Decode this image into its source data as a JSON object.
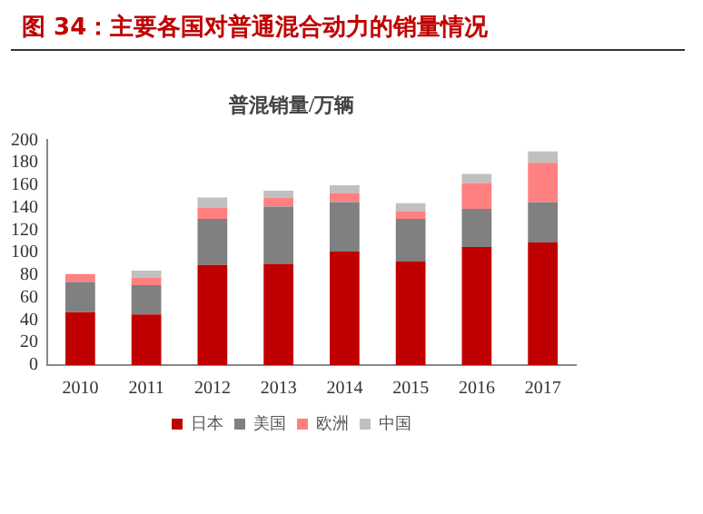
{
  "chart_data": {
    "type": "bar",
    "title": "图 34：主要各国对普通混合动力的销量情况",
    "subtitle": "普混销量/万辆",
    "categories": [
      "2010",
      "2011",
      "2012",
      "2013",
      "2014",
      "2015",
      "2016",
      "2017"
    ],
    "stacked": true,
    "series": [
      {
        "name": "日本",
        "color": "#c00000",
        "values": [
          47,
          45,
          89,
          90,
          101,
          92,
          105,
          109
        ]
      },
      {
        "name": "美国",
        "color": "#808080",
        "values": [
          27,
          26,
          41,
          51,
          44,
          38,
          34,
          36
        ]
      },
      {
        "name": "欧洲",
        "color": "#ff8080",
        "values": [
          7,
          7,
          10,
          8,
          8,
          7,
          23,
          35
        ]
      },
      {
        "name": "中国",
        "color": "#c0c0c0",
        "values": [
          0,
          6,
          9,
          6,
          7,
          7,
          8,
          10
        ]
      }
    ],
    "ylim": [
      0,
      200
    ],
    "yticks": [
      0,
      20,
      40,
      60,
      80,
      100,
      120,
      140,
      160,
      180,
      200
    ],
    "grid": false,
    "legend": "bottom"
  }
}
